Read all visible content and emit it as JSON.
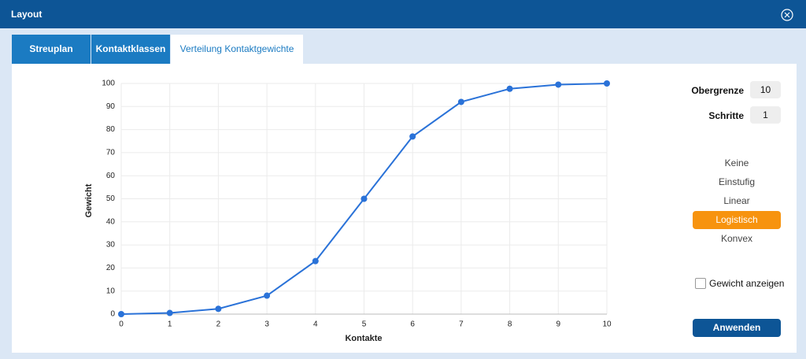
{
  "header": {
    "title": "Layout"
  },
  "tabs": [
    "Streuplan",
    "Kontaktklassen",
    "Verteilung Kontaktgewichte"
  ],
  "chart_data": {
    "type": "line",
    "x_label": "Kontakte",
    "y_label": "Gewicht",
    "x": [
      0,
      1,
      2,
      3,
      4,
      5,
      6,
      7,
      8,
      9,
      10
    ],
    "values": [
      0,
      0.5,
      2.3,
      8,
      23,
      50,
      77,
      92,
      97.7,
      99.5,
      100
    ],
    "color": "#2a72d8",
    "xlim": [
      0,
      10
    ],
    "xticks": [
      0,
      1,
      2,
      3,
      4,
      5,
      6,
      7,
      8,
      9,
      10
    ],
    "ylim": [
      0,
      100
    ],
    "yticks": [
      0,
      10,
      20,
      30,
      40,
      50,
      60,
      70,
      80,
      90,
      100
    ],
    "grid": true
  },
  "controls": {
    "upper_limit": {
      "label": "Obergrenze",
      "value": 10
    },
    "steps": {
      "label": "Schritte",
      "value": 1
    },
    "options": [
      "Keine",
      "Einstufig",
      "Linear",
      "Logistisch",
      "Konvex"
    ],
    "selected_option": "Logistisch",
    "checkbox": {
      "label": "Gewicht anzeigen",
      "checked": false
    },
    "apply_button": "Anwenden"
  }
}
